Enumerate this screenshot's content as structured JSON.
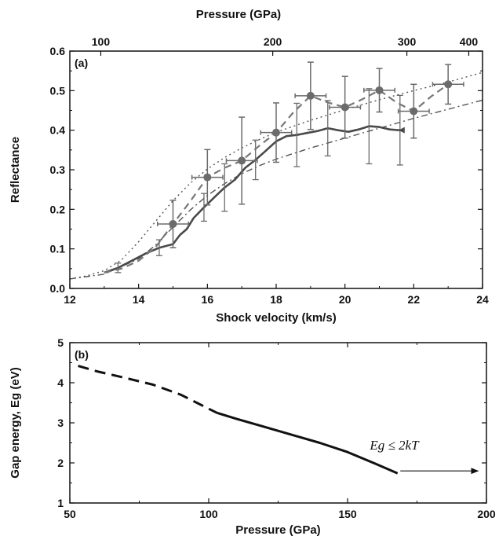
{
  "chart_data": [
    {
      "panel_label": "(a)",
      "type": "line",
      "xlabel": "Shock velocity (km/s)",
      "ylabel": "Reflectance",
      "top_xlabel": "Pressure (GPa)",
      "xlim": [
        12,
        24
      ],
      "ylim": [
        0,
        0.6
      ],
      "xticks": [
        "12",
        "14",
        "16",
        "18",
        "20",
        "22",
        "24"
      ],
      "yticks": [
        "0.0",
        "0.1",
        "0.2",
        "0.3",
        "0.4",
        "0.5",
        "0.6"
      ],
      "top_ticks": [
        {
          "label": "100",
          "x": 12.9
        },
        {
          "label": "200",
          "x": 17.9
        },
        {
          "label": "300",
          "x": 21.8
        },
        {
          "label": "400",
          "x": 23.6
        }
      ],
      "series": [
        {
          "style": "markers-errorbars",
          "color": "#6b6b6b",
          "points": [
            {
              "x": 15.0,
              "y": 0.163,
              "xerr": 0.45,
              "yerr": 0.06
            },
            {
              "x": 16.0,
              "y": 0.281,
              "xerr": 0.45,
              "yerr": 0.07
            },
            {
              "x": 17.0,
              "y": 0.323,
              "xerr": 0.45,
              "yerr": 0.11
            },
            {
              "x": 18.0,
              "y": 0.394,
              "xerr": 0.45,
              "yerr": 0.075
            },
            {
              "x": 19.0,
              "y": 0.487,
              "xerr": 0.45,
              "yerr": 0.085
            },
            {
              "x": 20.0,
              "y": 0.458,
              "xerr": 0.45,
              "yerr": 0.078
            },
            {
              "x": 21.0,
              "y": 0.501,
              "xerr": 0.45,
              "yerr": 0.055
            },
            {
              "x": 22.0,
              "y": 0.448,
              "xerr": 0.45,
              "yerr": 0.068
            },
            {
              "x": 23.0,
              "y": 0.516,
              "xerr": 0.45,
              "yerr": 0.05
            }
          ]
        },
        {
          "style": "dashed",
          "color": "#777777",
          "points": [
            [
              13.0,
              0.04
            ],
            [
              13.5,
              0.05
            ],
            [
              14.0,
              0.07
            ],
            [
              14.5,
              0.105
            ],
            [
              15.0,
              0.163
            ],
            [
              15.5,
              0.22
            ],
            [
              16.0,
              0.281
            ],
            [
              16.5,
              0.305
            ],
            [
              17.0,
              0.323
            ],
            [
              17.5,
              0.36
            ],
            [
              18.0,
              0.394
            ],
            [
              18.5,
              0.445
            ],
            [
              19.0,
              0.487
            ],
            [
              19.5,
              0.47
            ],
            [
              20.0,
              0.458
            ],
            [
              20.5,
              0.478
            ],
            [
              21.0,
              0.501
            ],
            [
              21.5,
              0.47
            ],
            [
              22.0,
              0.448
            ],
            [
              22.5,
              0.485
            ],
            [
              23.0,
              0.516
            ]
          ]
        },
        {
          "style": "solid-thick",
          "color": "#4a4a4a",
          "yerr_color": "#6b6b6b",
          "points": [
            {
              "x": 13.0,
              "y": 0.04
            },
            {
              "x": 13.4,
              "y": 0.052,
              "yerr": 0.012
            },
            {
              "x": 13.8,
              "y": 0.07
            },
            {
              "x": 14.2,
              "y": 0.088
            },
            {
              "x": 14.6,
              "y": 0.103,
              "yerr": 0.02
            },
            {
              "x": 15.0,
              "y": 0.112
            },
            {
              "x": 15.2,
              "y": 0.135
            },
            {
              "x": 15.4,
              "y": 0.15
            },
            {
              "x": 15.6,
              "y": 0.178
            },
            {
              "x": 15.9,
              "y": 0.205,
              "yerr": 0.035
            },
            {
              "x": 16.2,
              "y": 0.23
            },
            {
              "x": 16.5,
              "y": 0.255,
              "yerr": 0.06
            },
            {
              "x": 16.8,
              "y": 0.275
            },
            {
              "x": 17.1,
              "y": 0.305
            },
            {
              "x": 17.4,
              "y": 0.325,
              "yerr": 0.05
            },
            {
              "x": 17.7,
              "y": 0.348
            },
            {
              "x": 18.0,
              "y": 0.372
            },
            {
              "x": 18.3,
              "y": 0.385
            },
            {
              "x": 18.6,
              "y": 0.388,
              "yerr": 0.08
            },
            {
              "x": 18.9,
              "y": 0.393
            },
            {
              "x": 19.2,
              "y": 0.398
            },
            {
              "x": 19.5,
              "y": 0.405,
              "yerr": 0.07
            },
            {
              "x": 19.8,
              "y": 0.4
            },
            {
              "x": 20.1,
              "y": 0.396
            },
            {
              "x": 20.4,
              "y": 0.402
            },
            {
              "x": 20.7,
              "y": 0.41,
              "yerr": 0.095
            },
            {
              "x": 21.0,
              "y": 0.408
            },
            {
              "x": 21.3,
              "y": 0.402
            },
            {
              "x": 21.6,
              "y": 0.4,
              "yerr": 0.088
            }
          ]
        },
        {
          "style": "dotted",
          "color": "#555555",
          "points": [
            [
              12.0,
              0.024
            ],
            [
              12.5,
              0.032
            ],
            [
              13.0,
              0.045
            ],
            [
              13.5,
              0.072
            ],
            [
              14.0,
              0.118
            ],
            [
              14.5,
              0.17
            ],
            [
              15.0,
              0.222
            ],
            [
              15.5,
              0.266
            ],
            [
              16.0,
              0.302
            ],
            [
              16.5,
              0.331
            ],
            [
              17.0,
              0.355
            ],
            [
              17.5,
              0.376
            ],
            [
              18.0,
              0.395
            ],
            [
              19.0,
              0.425
            ],
            [
              20.0,
              0.452
            ],
            [
              21.0,
              0.477
            ],
            [
              22.0,
              0.5
            ],
            [
              23.0,
              0.522
            ],
            [
              24.0,
              0.546
            ]
          ]
        },
        {
          "style": "dash-dot",
          "color": "#555555",
          "points": [
            [
              12.0,
              0.024
            ],
            [
              13.0,
              0.036
            ],
            [
              14.0,
              0.075
            ],
            [
              14.5,
              0.11
            ],
            [
              15.0,
              0.155
            ],
            [
              15.5,
              0.198
            ],
            [
              16.0,
              0.235
            ],
            [
              16.5,
              0.265
            ],
            [
              17.0,
              0.29
            ],
            [
              17.5,
              0.31
            ],
            [
              18.0,
              0.327
            ],
            [
              19.0,
              0.355
            ],
            [
              20.0,
              0.38
            ],
            [
              21.0,
              0.405
            ],
            [
              22.0,
              0.43
            ],
            [
              23.0,
              0.453
            ],
            [
              24.0,
              0.476
            ]
          ]
        }
      ]
    },
    {
      "panel_label": "(b)",
      "type": "line",
      "xlabel": "Pressure (GPa)",
      "ylabel": "Gap energy, Eg (eV)",
      "xlim": [
        50,
        200
      ],
      "ylim": [
        1,
        5
      ],
      "xticks": [
        "50",
        "100",
        "150",
        "200"
      ],
      "yticks": [
        "1",
        "2",
        "3",
        "4",
        "5"
      ],
      "annotation": "Eg ≤ 2kT",
      "arrow_x": [
        169,
        197
      ],
      "arrow_y": 1.8,
      "series": [
        {
          "style": "dashed",
          "color": "#111111",
          "points": [
            [
              53,
              4.42
            ],
            [
              60,
              4.28
            ],
            [
              70,
              4.12
            ],
            [
              80,
              3.95
            ],
            [
              90,
              3.7
            ],
            [
              100,
              3.35
            ],
            [
              103,
              3.25
            ]
          ]
        },
        {
          "style": "solid",
          "color": "#111111",
          "points": [
            [
              103,
              3.25
            ],
            [
              110,
              3.1
            ],
            [
              120,
              2.9
            ],
            [
              130,
              2.7
            ],
            [
              140,
              2.5
            ],
            [
              150,
              2.27
            ],
            [
              160,
              1.98
            ],
            [
              168,
              1.74
            ]
          ]
        }
      ]
    }
  ]
}
